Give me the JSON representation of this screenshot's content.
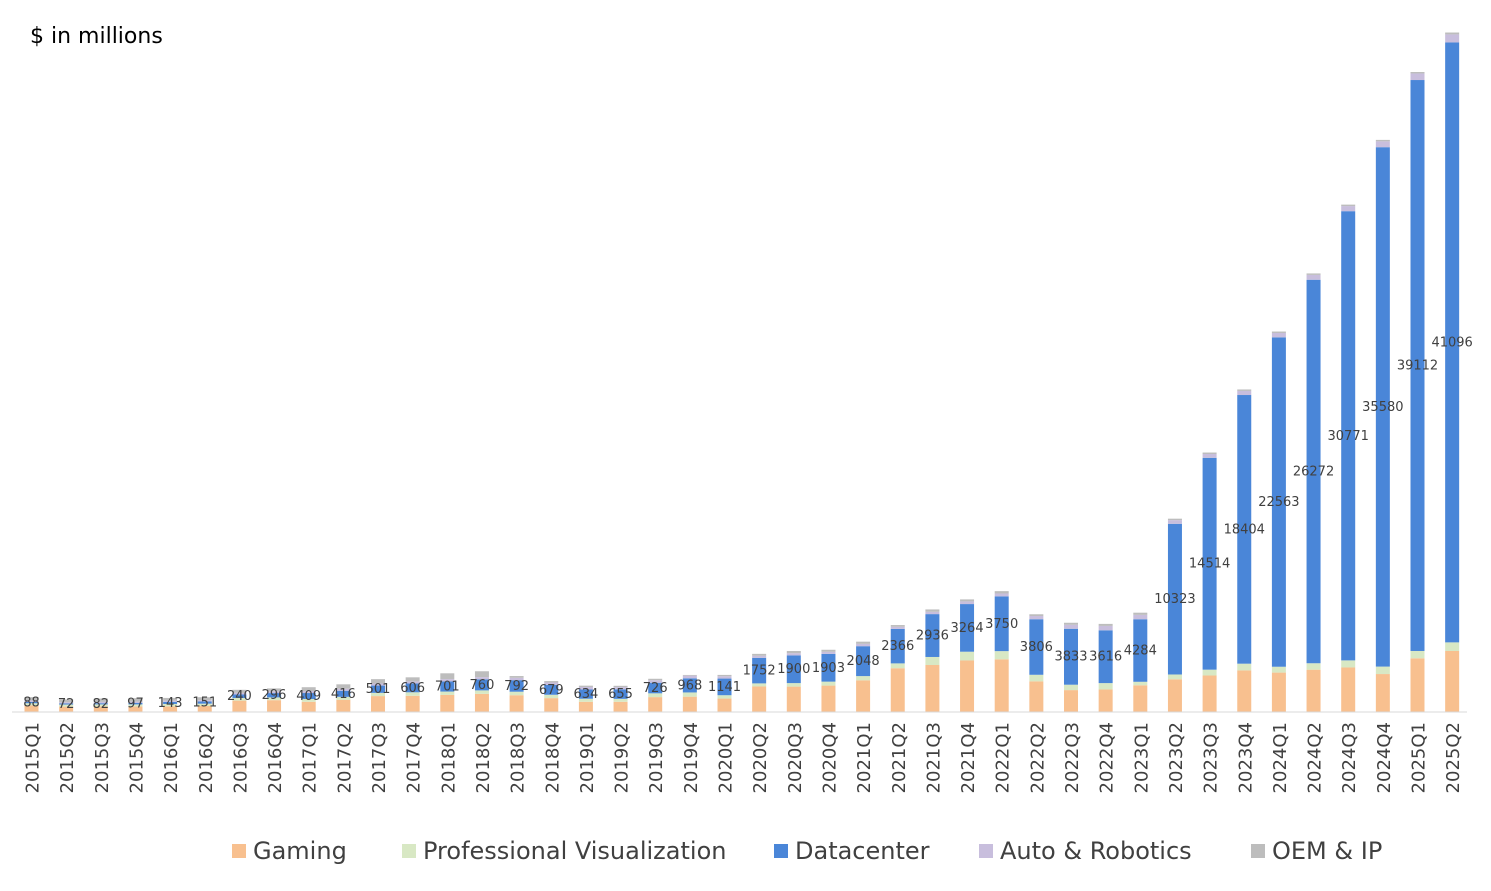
{
  "unit_label": "$ in millions",
  "colors": {
    "Gaming": "#F8C08F",
    "Professional Visualization": "#D8E8C4",
    "Datacenter": "#4A86D8",
    "Auto & Robotics": "#C8BEDD",
    "OEM & IP": "#BDBDBD"
  },
  "chart_data": {
    "type": "bar",
    "stacked": true,
    "title": "",
    "ylabel": "$ in millions",
    "xlabel": "",
    "legend_position": "bottom",
    "ylim": [
      0,
      48500
    ],
    "categories": [
      "2015Q1",
      "2015Q2",
      "2015Q3",
      "2015Q4",
      "2016Q1",
      "2016Q2",
      "2016Q3",
      "2016Q4",
      "2017Q1",
      "2017Q2",
      "2017Q3",
      "2017Q4",
      "2018Q1",
      "2018Q2",
      "2018Q3",
      "2018Q4",
      "2019Q1",
      "2019Q2",
      "2019Q3",
      "2019Q4",
      "2020Q1",
      "2020Q2",
      "2020Q3",
      "2020Q4",
      "2021Q1",
      "2021Q2",
      "2021Q3",
      "2021Q4",
      "2022Q1",
      "2022Q2",
      "2022Q3",
      "2022Q4",
      "2023Q1",
      "2023Q2",
      "2023Q3",
      "2023Q4",
      "2024Q1",
      "2024Q2",
      "2024Q3",
      "2024Q4",
      "2025Q1",
      "2025Q2"
    ],
    "datacenter_labels": [
      "88",
      "72",
      "82",
      "97",
      "143",
      "151",
      "240",
      "296",
      "409",
      "416",
      "501",
      "606",
      "701",
      "760",
      "792",
      "679",
      "634",
      "655",
      "726",
      "968",
      "1141",
      "1752",
      "1900",
      "1903",
      "2048",
      "2366",
      "2936",
      "3264",
      "3750",
      "3806",
      "3833",
      "3616",
      "4284",
      "10323",
      "14514",
      "18404",
      "22563",
      "26272",
      "30771",
      "35580",
      "39112",
      "41096"
    ],
    "series": [
      {
        "name": "Gaming",
        "values": [
          450,
          370,
          380,
          380,
          390,
          410,
          780,
          810,
          700,
          840,
          1090,
          1110,
          1170,
          1240,
          1150,
          950,
          700,
          700,
          1020,
          1050,
          920,
          1750,
          1740,
          1810,
          2170,
          3000,
          3220,
          3530,
          3610,
          2100,
          1500,
          1540,
          1830,
          2240,
          2500,
          2850,
          2700,
          2900,
          3050,
          2600,
          3680,
          4180
        ]
      },
      {
        "name": "Professional Visualization",
        "values": [
          150,
          140,
          140,
          140,
          160,
          160,
          180,
          190,
          190,
          200,
          220,
          240,
          230,
          240,
          240,
          230,
          210,
          200,
          260,
          290,
          230,
          210,
          240,
          270,
          290,
          330,
          550,
          600,
          560,
          450,
          370,
          440,
          240,
          330,
          400,
          460,
          400,
          440,
          486,
          511,
          500,
          590
        ]
      },
      {
        "name": "Datacenter",
        "values": [
          88,
          72,
          82,
          97,
          143,
          151,
          240,
          296,
          409,
          416,
          501,
          606,
          701,
          760,
          792,
          679,
          634,
          655,
          726,
          968,
          1141,
          1752,
          1900,
          1903,
          2048,
          2366,
          2936,
          3264,
          3750,
          3806,
          3833,
          3616,
          4284,
          10323,
          14514,
          18404,
          22563,
          26272,
          30771,
          35580,
          39112,
          41096
        ]
      },
      {
        "name": "Auto & Robotics",
        "values": [
          100,
          80,
          90,
          90,
          90,
          90,
          110,
          120,
          140,
          140,
          140,
          140,
          150,
          150,
          160,
          160,
          170,
          150,
          170,
          180,
          160,
          140,
          150,
          140,
          160,
          140,
          160,
          180,
          200,
          220,
          270,
          300,
          300,
          250,
          260,
          280,
          300,
          330,
          350,
          400,
          450,
          550
        ]
      },
      {
        "name": "OEM & IP",
        "values": [
          230,
          200,
          230,
          240,
          180,
          200,
          210,
          200,
          260,
          300,
          300,
          280,
          400,
          400,
          120,
          100,
          90,
          90,
          100,
          50,
          90,
          130,
          150,
          140,
          150,
          120,
          160,
          140,
          160,
          120,
          140,
          140,
          150,
          100,
          100,
          100,
          100,
          100,
          100,
          100,
          100,
          130
        ]
      }
    ]
  }
}
